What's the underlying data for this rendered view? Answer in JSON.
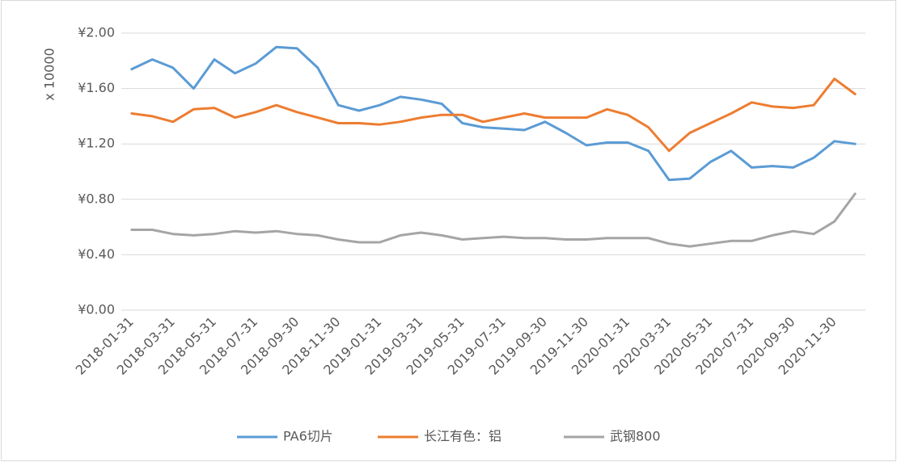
{
  "chart_data": {
    "type": "line",
    "y_label": "x 10000",
    "categories": [
      "2018-01-31",
      null,
      "2018-03-31",
      null,
      "2018-05-31",
      null,
      "2018-07-31",
      null,
      "2018-09-30",
      null,
      "2018-11-30",
      null,
      "2019-01-31",
      null,
      "2019-03-31",
      null,
      "2019-05-31",
      null,
      "2019-07-31",
      null,
      "2019-09-30",
      null,
      "2019-11-30",
      null,
      "2020-01-31",
      null,
      "2020-03-31",
      null,
      "2020-05-31",
      null,
      "2020-07-31",
      null,
      "2020-09-30",
      null,
      "2020-11-30",
      null
    ],
    "series": [
      {
        "name": "PA6切片",
        "color": "#5b9bd5",
        "values": [
          1.74,
          1.81,
          1.75,
          1.6,
          1.81,
          1.71,
          1.78,
          1.9,
          1.89,
          1.75,
          1.48,
          1.44,
          1.48,
          1.54,
          1.52,
          1.49,
          1.35,
          1.32,
          1.31,
          1.3,
          1.36,
          1.28,
          1.19,
          1.21,
          1.21,
          1.15,
          0.94,
          0.95,
          1.07,
          1.15,
          1.03,
          1.04,
          1.03,
          1.1,
          1.22,
          1.2
        ]
      },
      {
        "name": "长江有色：铝",
        "color": "#ed7d31",
        "values": [
          1.42,
          1.4,
          1.36,
          1.45,
          1.46,
          1.39,
          1.43,
          1.48,
          1.43,
          1.39,
          1.35,
          1.35,
          1.34,
          1.36,
          1.39,
          1.41,
          1.41,
          1.36,
          1.39,
          1.42,
          1.39,
          1.39,
          1.39,
          1.45,
          1.41,
          1.32,
          1.15,
          1.28,
          1.35,
          1.42,
          1.5,
          1.47,
          1.46,
          1.48,
          1.67,
          1.56
        ]
      },
      {
        "name": "武钢800",
        "color": "#a5a5a5",
        "values": [
          0.58,
          0.58,
          0.55,
          0.54,
          0.55,
          0.57,
          0.56,
          0.57,
          0.55,
          0.54,
          0.51,
          0.49,
          0.49,
          0.54,
          0.56,
          0.54,
          0.51,
          0.52,
          0.53,
          0.52,
          0.52,
          0.51,
          0.51,
          0.52,
          0.52,
          0.52,
          0.48,
          0.46,
          0.48,
          0.5,
          0.5,
          0.54,
          0.57,
          0.55,
          0.64,
          0.84
        ]
      }
    ],
    "ylim": [
      0,
      2
    ],
    "yticks": [
      {
        "value": 0,
        "label": "¥0.00"
      },
      {
        "value": 0.4,
        "label": "¥0.40"
      },
      {
        "value": 0.8,
        "label": "¥0.80"
      },
      {
        "value": 1.2,
        "label": "¥1.20"
      },
      {
        "value": 1.6,
        "label": "¥1.60"
      },
      {
        "value": 2,
        "label": "¥2.00"
      }
    ],
    "grid": true,
    "legend": "bottom"
  }
}
